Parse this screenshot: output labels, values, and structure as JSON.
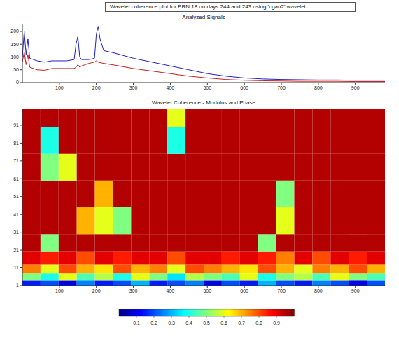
{
  "chart_data": [
    {
      "type": "line",
      "title": "Wavelet coherence plot for PRN 18 on days 244 and 243 using 'cgau2' wavelet",
      "subtitle": "Analyzed Signals",
      "x": [
        0,
        5,
        10,
        15,
        20,
        30,
        40,
        60,
        80,
        100,
        120,
        140,
        145,
        150,
        155,
        160,
        180,
        195,
        200,
        205,
        210,
        220,
        250,
        300,
        350,
        400,
        450,
        500,
        550,
        600,
        650,
        700,
        750,
        800,
        850,
        900,
        950,
        980
      ],
      "series": [
        {
          "color": "#2020c0",
          "values": [
            100,
            200,
            110,
            170,
            95,
            90,
            85,
            80,
            85,
            85,
            85,
            90,
            150,
            180,
            100,
            90,
            90,
            95,
            190,
            220,
            170,
            125,
            115,
            95,
            80,
            65,
            50,
            35,
            25,
            18,
            14,
            12,
            11,
            10,
            10,
            9,
            9,
            9
          ]
        },
        {
          "color": "#c02020",
          "values": [
            80,
            120,
            70,
            110,
            60,
            55,
            50,
            48,
            55,
            55,
            55,
            55,
            60,
            70,
            60,
            65,
            75,
            80,
            85,
            80,
            78,
            75,
            68,
            55,
            45,
            35,
            25,
            18,
            12,
            9,
            7,
            6,
            5,
            5,
            5,
            4,
            4,
            4
          ]
        }
      ],
      "xlim": [
        0,
        980
      ],
      "ylim": [
        0,
        230
      ],
      "xticks": [
        100,
        200,
        300,
        400,
        500,
        600,
        700,
        800,
        900
      ],
      "yticks": [
        0,
        50,
        100,
        150,
        200
      ]
    },
    {
      "type": "heatmap",
      "title": "Wavelet Coherence - Modulus and Phase",
      "xlim": [
        0,
        980
      ],
      "ylim": [
        1,
        100
      ],
      "xticks": [
        100,
        200,
        300,
        400,
        500,
        600,
        700,
        800,
        900
      ],
      "yticks": [
        1,
        11,
        21,
        31,
        41,
        51,
        61,
        71,
        81,
        91
      ],
      "x_edges": [
        0,
        49,
        98,
        147,
        196,
        245,
        294,
        343,
        392,
        441,
        490,
        539,
        588,
        637,
        686,
        735,
        784,
        833,
        882,
        931,
        980
      ],
      "y_edges": [
        1,
        4,
        8,
        13,
        20,
        30,
        45,
        60,
        75,
        90,
        100
      ],
      "cells": [
        [
          0.15,
          0.2,
          0.1,
          0.25,
          0.15,
          0.2,
          0.3,
          0.15,
          0.2,
          0.25,
          0.1,
          0.2,
          0.15,
          0.3,
          0.2,
          0.15,
          0.25,
          0.2,
          0.1,
          0.2
        ],
        [
          0.5,
          0.4,
          0.6,
          0.45,
          0.55,
          0.4,
          0.6,
          0.5,
          0.35,
          0.55,
          0.5,
          0.45,
          0.6,
          0.4,
          0.5,
          0.55,
          0.45,
          0.6,
          0.5,
          0.45
        ],
        [
          0.75,
          0.6,
          0.8,
          0.7,
          0.65,
          0.8,
          0.7,
          0.75,
          0.6,
          0.8,
          0.75,
          0.7,
          0.65,
          0.8,
          0.7,
          0.6,
          0.75,
          0.7,
          0.8,
          0.7
        ],
        [
          0.9,
          0.85,
          0.9,
          0.8,
          0.9,
          0.85,
          0.9,
          0.9,
          0.8,
          0.9,
          0.9,
          0.85,
          0.9,
          0.85,
          0.75,
          0.9,
          0.8,
          0.9,
          0.85,
          0.9
        ],
        [
          0.95,
          0.5,
          0.95,
          0.95,
          0.95,
          0.95,
          0.95,
          0.95,
          0.95,
          0.95,
          0.95,
          0.95,
          0.95,
          0.5,
          0.95,
          0.95,
          0.95,
          0.95,
          0.95,
          0.95
        ],
        [
          0.95,
          0.95,
          0.95,
          0.7,
          0.6,
          0.5,
          0.95,
          0.95,
          0.95,
          0.95,
          0.95,
          0.95,
          0.95,
          0.95,
          0.6,
          0.95,
          0.95,
          0.95,
          0.95,
          0.95
        ],
        [
          0.95,
          0.95,
          0.95,
          0.95,
          0.7,
          0.95,
          0.95,
          0.95,
          0.95,
          0.95,
          0.95,
          0.95,
          0.95,
          0.95,
          0.5,
          0.95,
          0.95,
          0.95,
          0.95,
          0.95
        ],
        [
          0.95,
          0.5,
          0.6,
          0.95,
          0.95,
          0.95,
          0.95,
          0.95,
          0.95,
          0.95,
          0.95,
          0.95,
          0.95,
          0.95,
          0.95,
          0.95,
          0.95,
          0.95,
          0.95,
          0.95
        ],
        [
          0.95,
          0.4,
          0.95,
          0.95,
          0.95,
          0.95,
          0.95,
          0.95,
          0.4,
          0.95,
          0.95,
          0.95,
          0.95,
          0.95,
          0.95,
          0.95,
          0.95,
          0.95,
          0.95,
          0.95
        ],
        [
          0.95,
          0.95,
          0.95,
          0.95,
          0.95,
          0.95,
          0.95,
          0.95,
          0.6,
          0.95,
          0.95,
          0.95,
          0.95,
          0.95,
          0.95,
          0.95,
          0.95,
          0.95,
          0.95,
          0.95
        ]
      ],
      "colorbar": {
        "range": [
          0,
          1
        ],
        "ticks": [
          0.1,
          0.2,
          0.3,
          0.4,
          0.5,
          0.6,
          0.7,
          0.8,
          0.9
        ]
      }
    }
  ]
}
